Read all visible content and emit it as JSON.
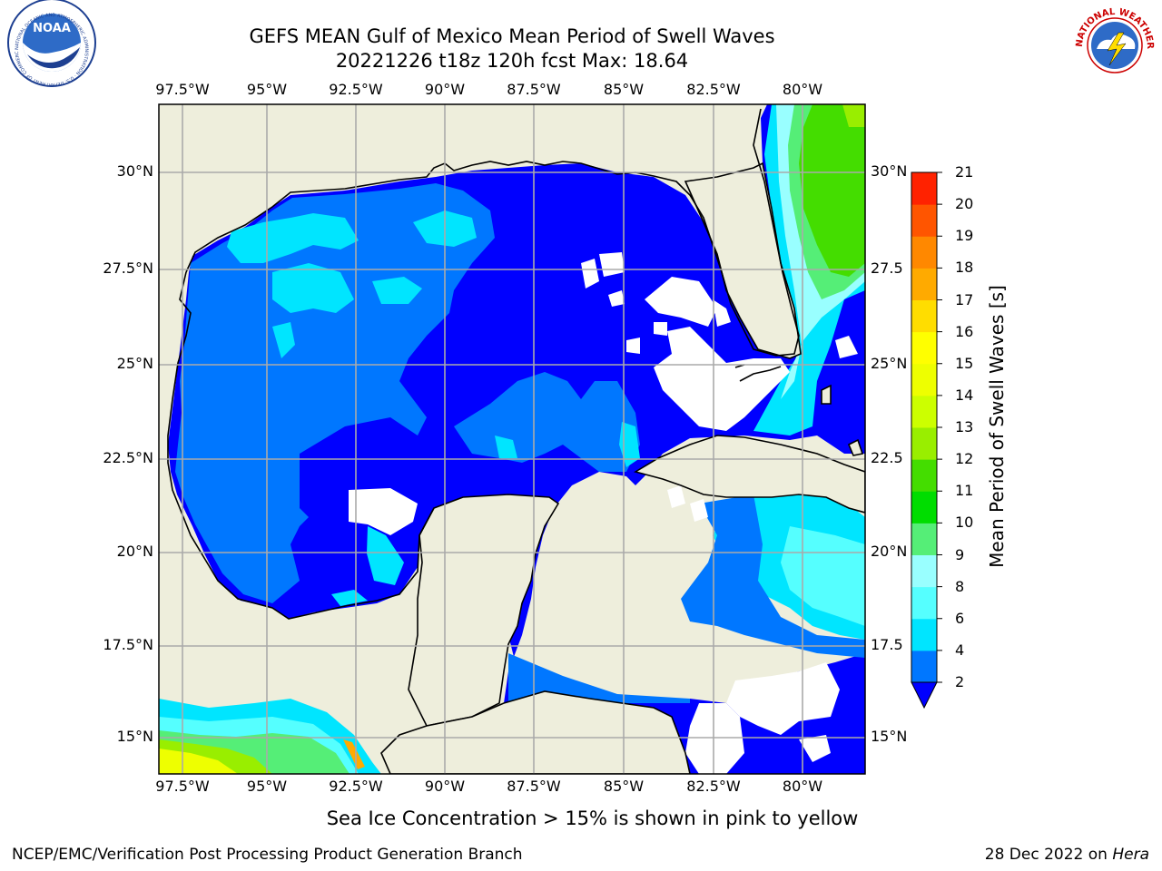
{
  "title": {
    "line1": "GEFS MEAN Gulf of Mexico Mean Period of Swell Waves",
    "line2": "20221226 t18z 120h fcst   Max: 18.64"
  },
  "axes": {
    "lon_labels": [
      "97.5°W",
      "95°W",
      "92.5°W",
      "90°W",
      "87.5°W",
      "85°W",
      "82.5°W",
      "80°W"
    ],
    "lat_labels": [
      "30°N",
      "27.5°N",
      "25°N",
      "22.5°N",
      "20°N",
      "17.5°N",
      "15°N"
    ],
    "right_lat_labels": [
      "30°N",
      "27.5",
      "25°N",
      "22.5",
      "20°N",
      "17.5",
      "15°N"
    ]
  },
  "colorbar": {
    "label": "Mean Period of Swell Waves [s]",
    "ticks": [
      "2",
      "4",
      "6",
      "8",
      "9",
      "10",
      "11",
      "12",
      "13",
      "14",
      "15",
      "16",
      "17",
      "18",
      "19",
      "20",
      "21"
    ],
    "colors": [
      "#0000ff",
      "#0077ff",
      "#00e5ff",
      "#55ffff",
      "#99ffff",
      "#55ee77",
      "#00dd00",
      "#44dd00",
      "#99ee00",
      "#ccff00",
      "#eeff00",
      "#ffff00",
      "#ffdd00",
      "#ffaa00",
      "#ff8800",
      "#ff5500",
      "#ff2200",
      "#ff0000"
    ],
    "extend_color": "#0000ff"
  },
  "colors": {
    "land": "#eeeedc",
    "no_data": "#ffffff",
    "grid": "#aaaaaa"
  },
  "note": "Sea Ice Concentration > 15% is shown in pink to yellow",
  "footer": {
    "left": "NCEP/EMC/Verification Post Processing Product Generation Branch",
    "right_prefix": "28 Dec 2022 on ",
    "right_italic": "Hera"
  },
  "logos": {
    "left": "NOAA",
    "left_ring": "NATIONAL OCEANIC AND ATMOSPHERIC ADMINISTRATION · U.S. DEPARTMENT OF COMMERCE",
    "right_ring": "NATIONAL WEATHER SERVICE"
  }
}
